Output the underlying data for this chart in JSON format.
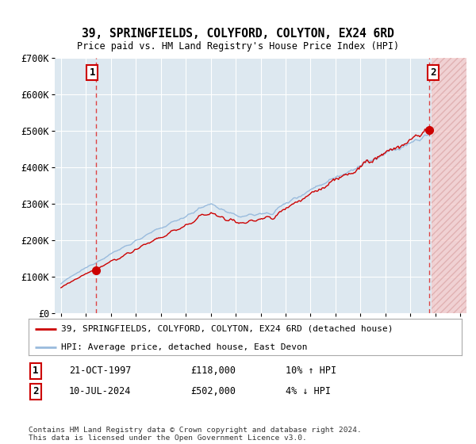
{
  "title": "39, SPRINGFIELDS, COLYFORD, COLYTON, EX24 6RD",
  "subtitle": "Price paid vs. HM Land Registry's House Price Index (HPI)",
  "legend_line1": "39, SPRINGFIELDS, COLYFORD, COLYTON, EX24 6RD (detached house)",
  "legend_line2": "HPI: Average price, detached house, East Devon",
  "marker1_date": "21-OCT-1997",
  "marker1_price": "£118,000",
  "marker1_hpi": "10% ↑ HPI",
  "marker2_date": "10-JUL-2024",
  "marker2_price": "£502,000",
  "marker2_hpi": "4% ↓ HPI",
  "footer": "Contains HM Land Registry data © Crown copyright and database right 2024.\nThis data is licensed under the Open Government Licence v3.0.",
  "ylim": [
    0,
    700000
  ],
  "yticks": [
    0,
    100000,
    200000,
    300000,
    400000,
    500000,
    600000,
    700000
  ],
  "ytick_labels": [
    "£0",
    "£100K",
    "£200K",
    "£300K",
    "£400K",
    "£500K",
    "£600K",
    "£700K"
  ],
  "xlim_start": 1994.5,
  "xlim_end": 2027.5,
  "hatch_start": 2024.7,
  "sale1_x": 1997.81,
  "sale1_y": 118000,
  "sale2_x": 2024.53,
  "sale2_y": 502000,
  "red_color": "#cc0000",
  "blue_color": "#99bbdd",
  "bg_color": "#dde8f0",
  "grid_color": "#ffffff",
  "marker_box_color": "#cc0000",
  "dashed_line_color": "#dd4444"
}
